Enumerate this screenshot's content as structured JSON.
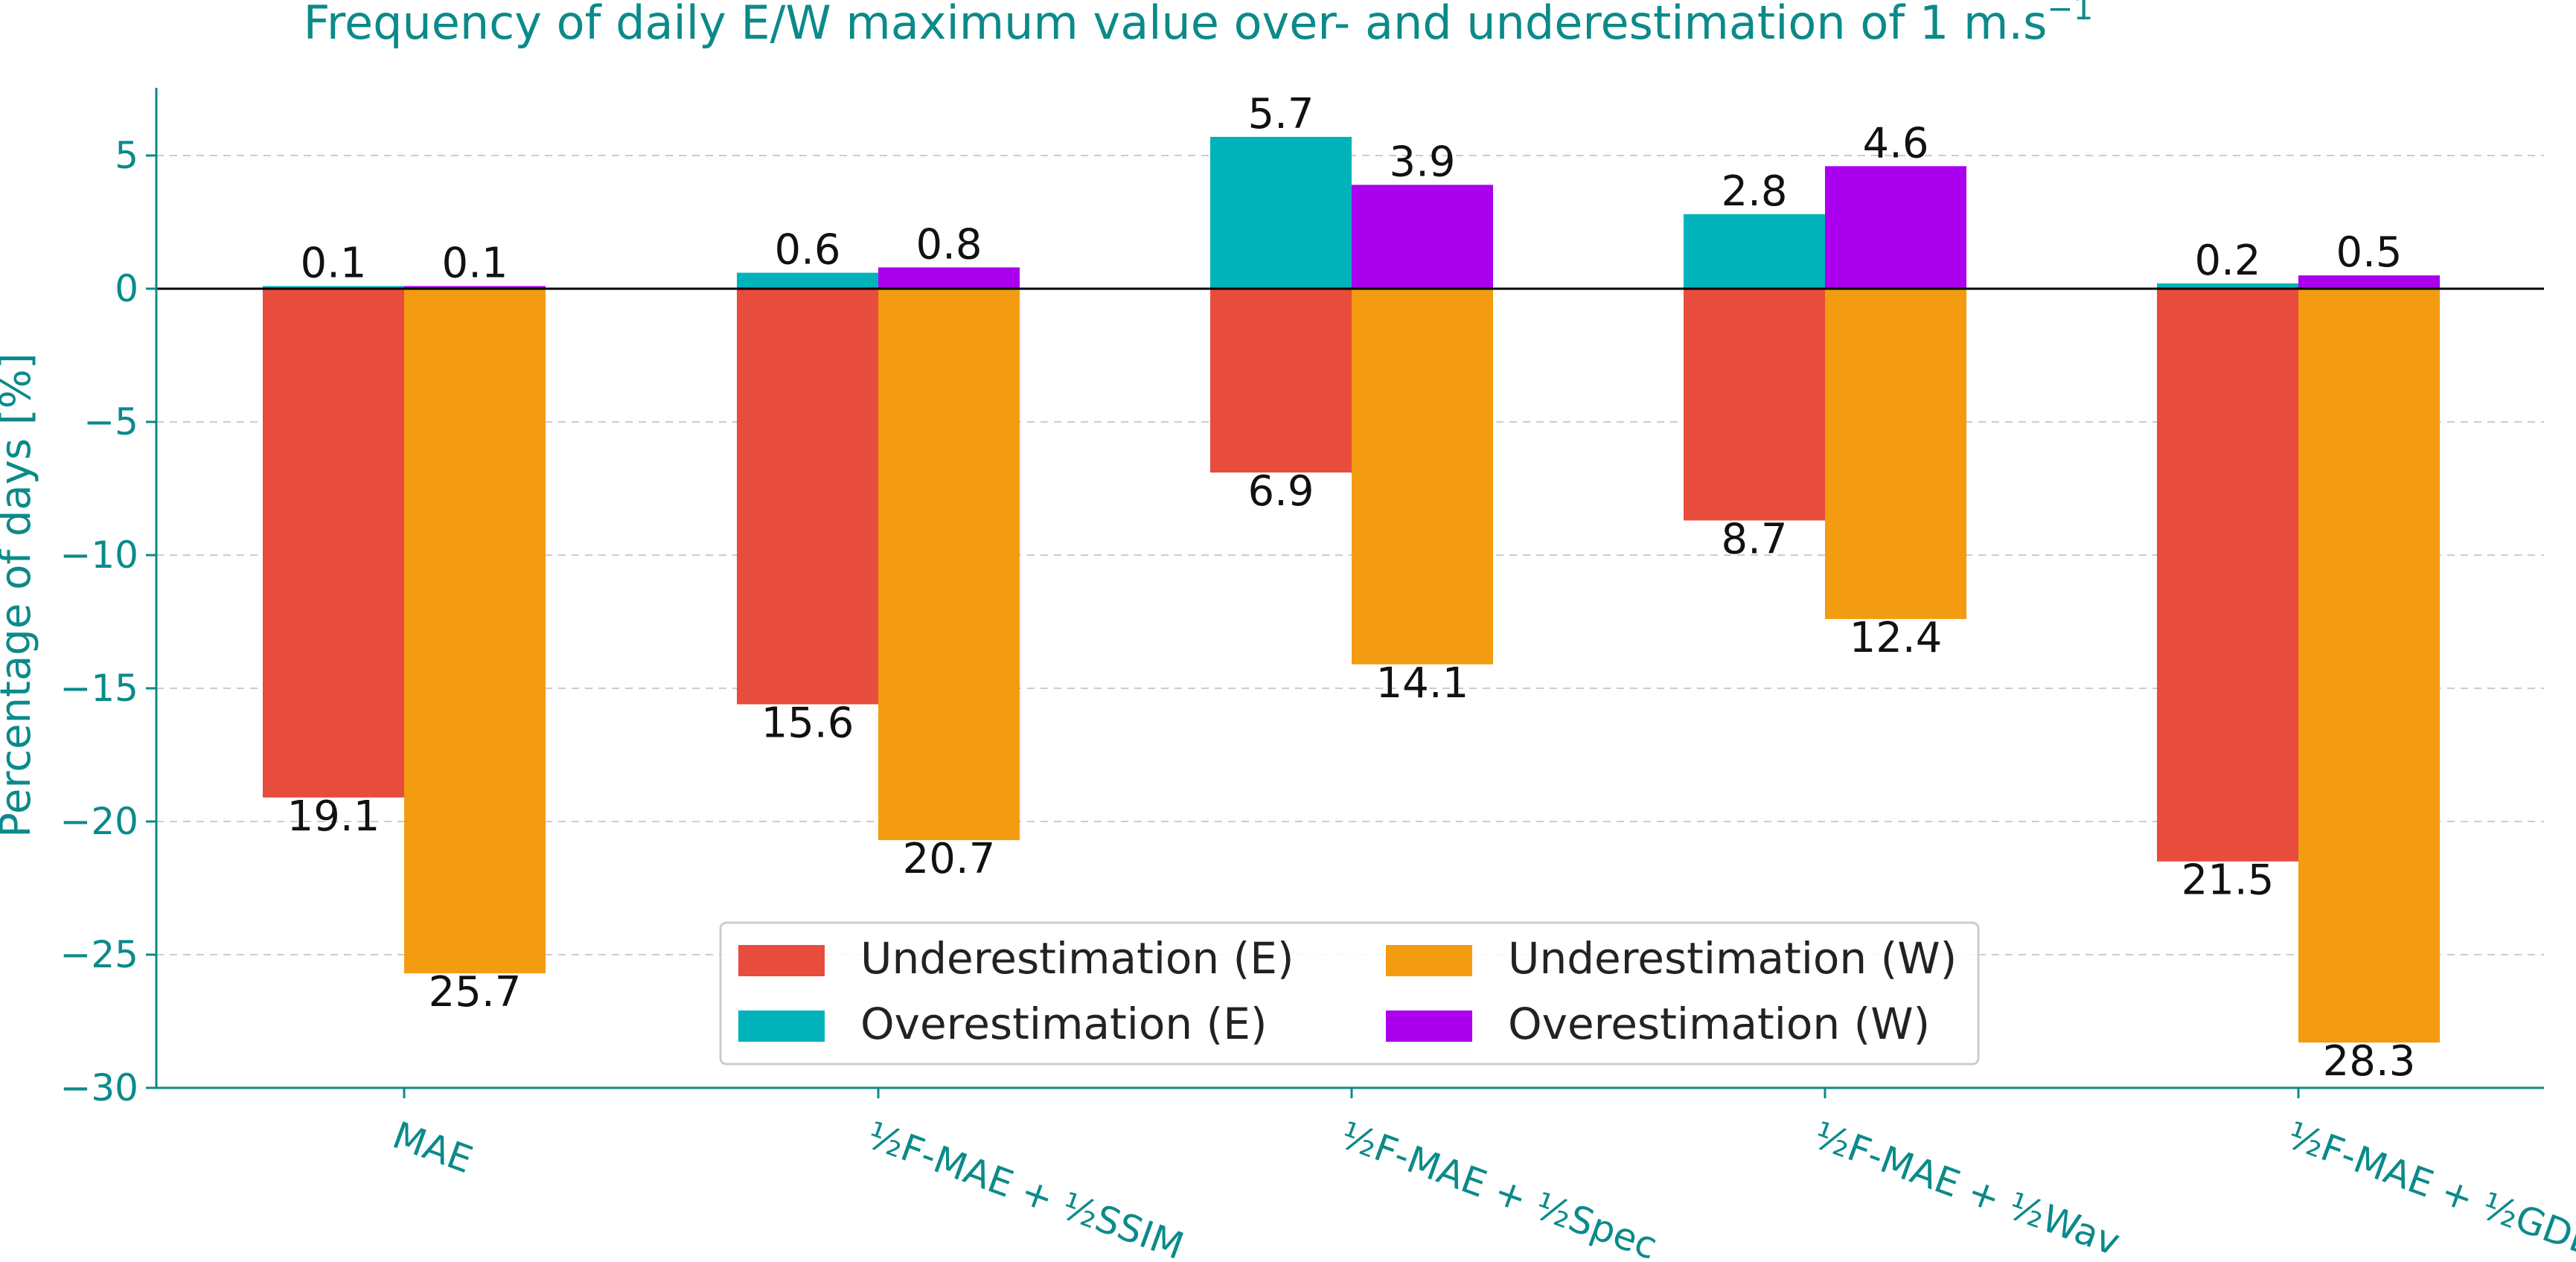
{
  "chart_data": {
    "type": "bar",
    "title": "Frequency of daily E/W maximum value over- and underestimation of 1 m.s",
    "title_superscript": "−1",
    "ylabel": "Percentage of days [%]",
    "xlabel": "",
    "ylim": [
      -30,
      7.5
    ],
    "yticks": [
      5,
      0,
      -5,
      -10,
      -15,
      -20,
      -25,
      -30
    ],
    "ytick_labels": [
      "5",
      "0",
      "−5",
      "−10",
      "−15",
      "−20",
      "−25",
      "−30"
    ],
    "grid": "horizontal dashed",
    "legend_position": "lower-center",
    "categories": [
      "MAE",
      "½F-MAE + ½SSIM",
      "½F-MAE + ½Spec",
      "½F-MAE + ½Wav",
      "½F-MAE + ½GDL"
    ],
    "series": [
      {
        "name": "Underestimation (E)",
        "color": "#e74c3c",
        "values": [
          -19.1,
          -15.6,
          -6.9,
          -8.7,
          -21.5
        ]
      },
      {
        "name": "Overestimation (E)",
        "color": "#00b3ba",
        "values": [
          0.1,
          0.6,
          5.7,
          2.8,
          0.2
        ]
      },
      {
        "name": "Underestimation (W)",
        "color": "#f39c12",
        "values": [
          -25.7,
          -20.7,
          -14.1,
          -12.4,
          -28.3
        ]
      },
      {
        "name": "Overestimation (W)",
        "color": "#aa00ee",
        "values": [
          0.1,
          0.8,
          3.9,
          4.6,
          0.5
        ]
      }
    ],
    "data_labels": {
      "Underestimation (E)": [
        "19.1",
        "15.6",
        "6.9",
        "8.7",
        "21.5"
      ],
      "Overestimation (E)": [
        "0.1",
        "0.6",
        "5.7",
        "2.8",
        "0.2"
      ],
      "Underestimation (W)": [
        "25.7",
        "20.7",
        "14.1",
        "12.4",
        "28.3"
      ],
      "Overestimation (W)": [
        "0.1",
        "0.8",
        "3.9",
        "4.6",
        "0.5"
      ]
    }
  }
}
